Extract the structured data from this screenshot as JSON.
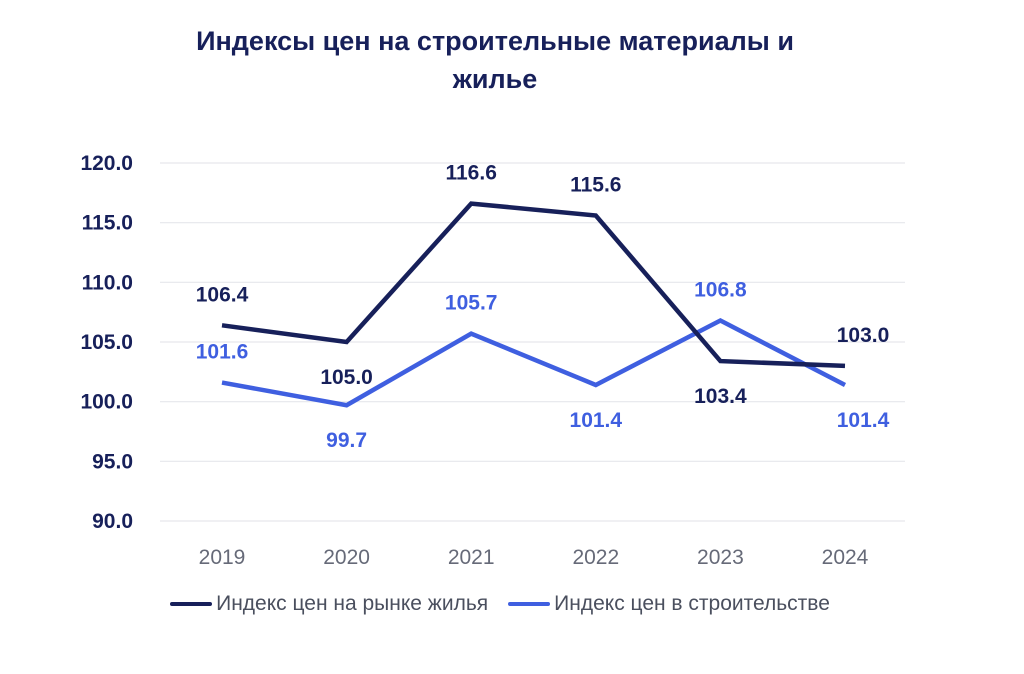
{
  "chart_data": {
    "type": "line",
    "title_lines": [
      "Индексы цен на строительные материалы и",
      "жилье"
    ],
    "categories": [
      "2019",
      "2020",
      "2021",
      "2022",
      "2023",
      "2024"
    ],
    "ylim": [
      90,
      120
    ],
    "yticks": [
      "90.0",
      "95.0",
      "100.0",
      "105.0",
      "110.0",
      "115.0",
      "120.0"
    ],
    "grid": true,
    "legend_position": "bottom",
    "series": [
      {
        "name": "Индекс цен на рынке жилья",
        "color": "#17205a",
        "values": [
          106.4,
          105.0,
          116.6,
          115.6,
          103.4,
          103.0
        ],
        "labels": [
          "106.4",
          "105.0",
          "116.6",
          "115.6",
          "103.4",
          "103.0"
        ],
        "label_side": [
          "above",
          "below",
          "above",
          "above",
          "below",
          "above"
        ]
      },
      {
        "name": "Индекс цен в строительстве",
        "color": "#3f5fe0",
        "values": [
          101.6,
          99.7,
          105.7,
          101.4,
          106.8,
          101.4
        ],
        "labels": [
          "101.6",
          "99.7",
          "105.7",
          "101.4",
          "106.8",
          "101.4"
        ],
        "label_side": [
          "above",
          "below",
          "above",
          "below",
          "above",
          "below"
        ]
      }
    ]
  }
}
